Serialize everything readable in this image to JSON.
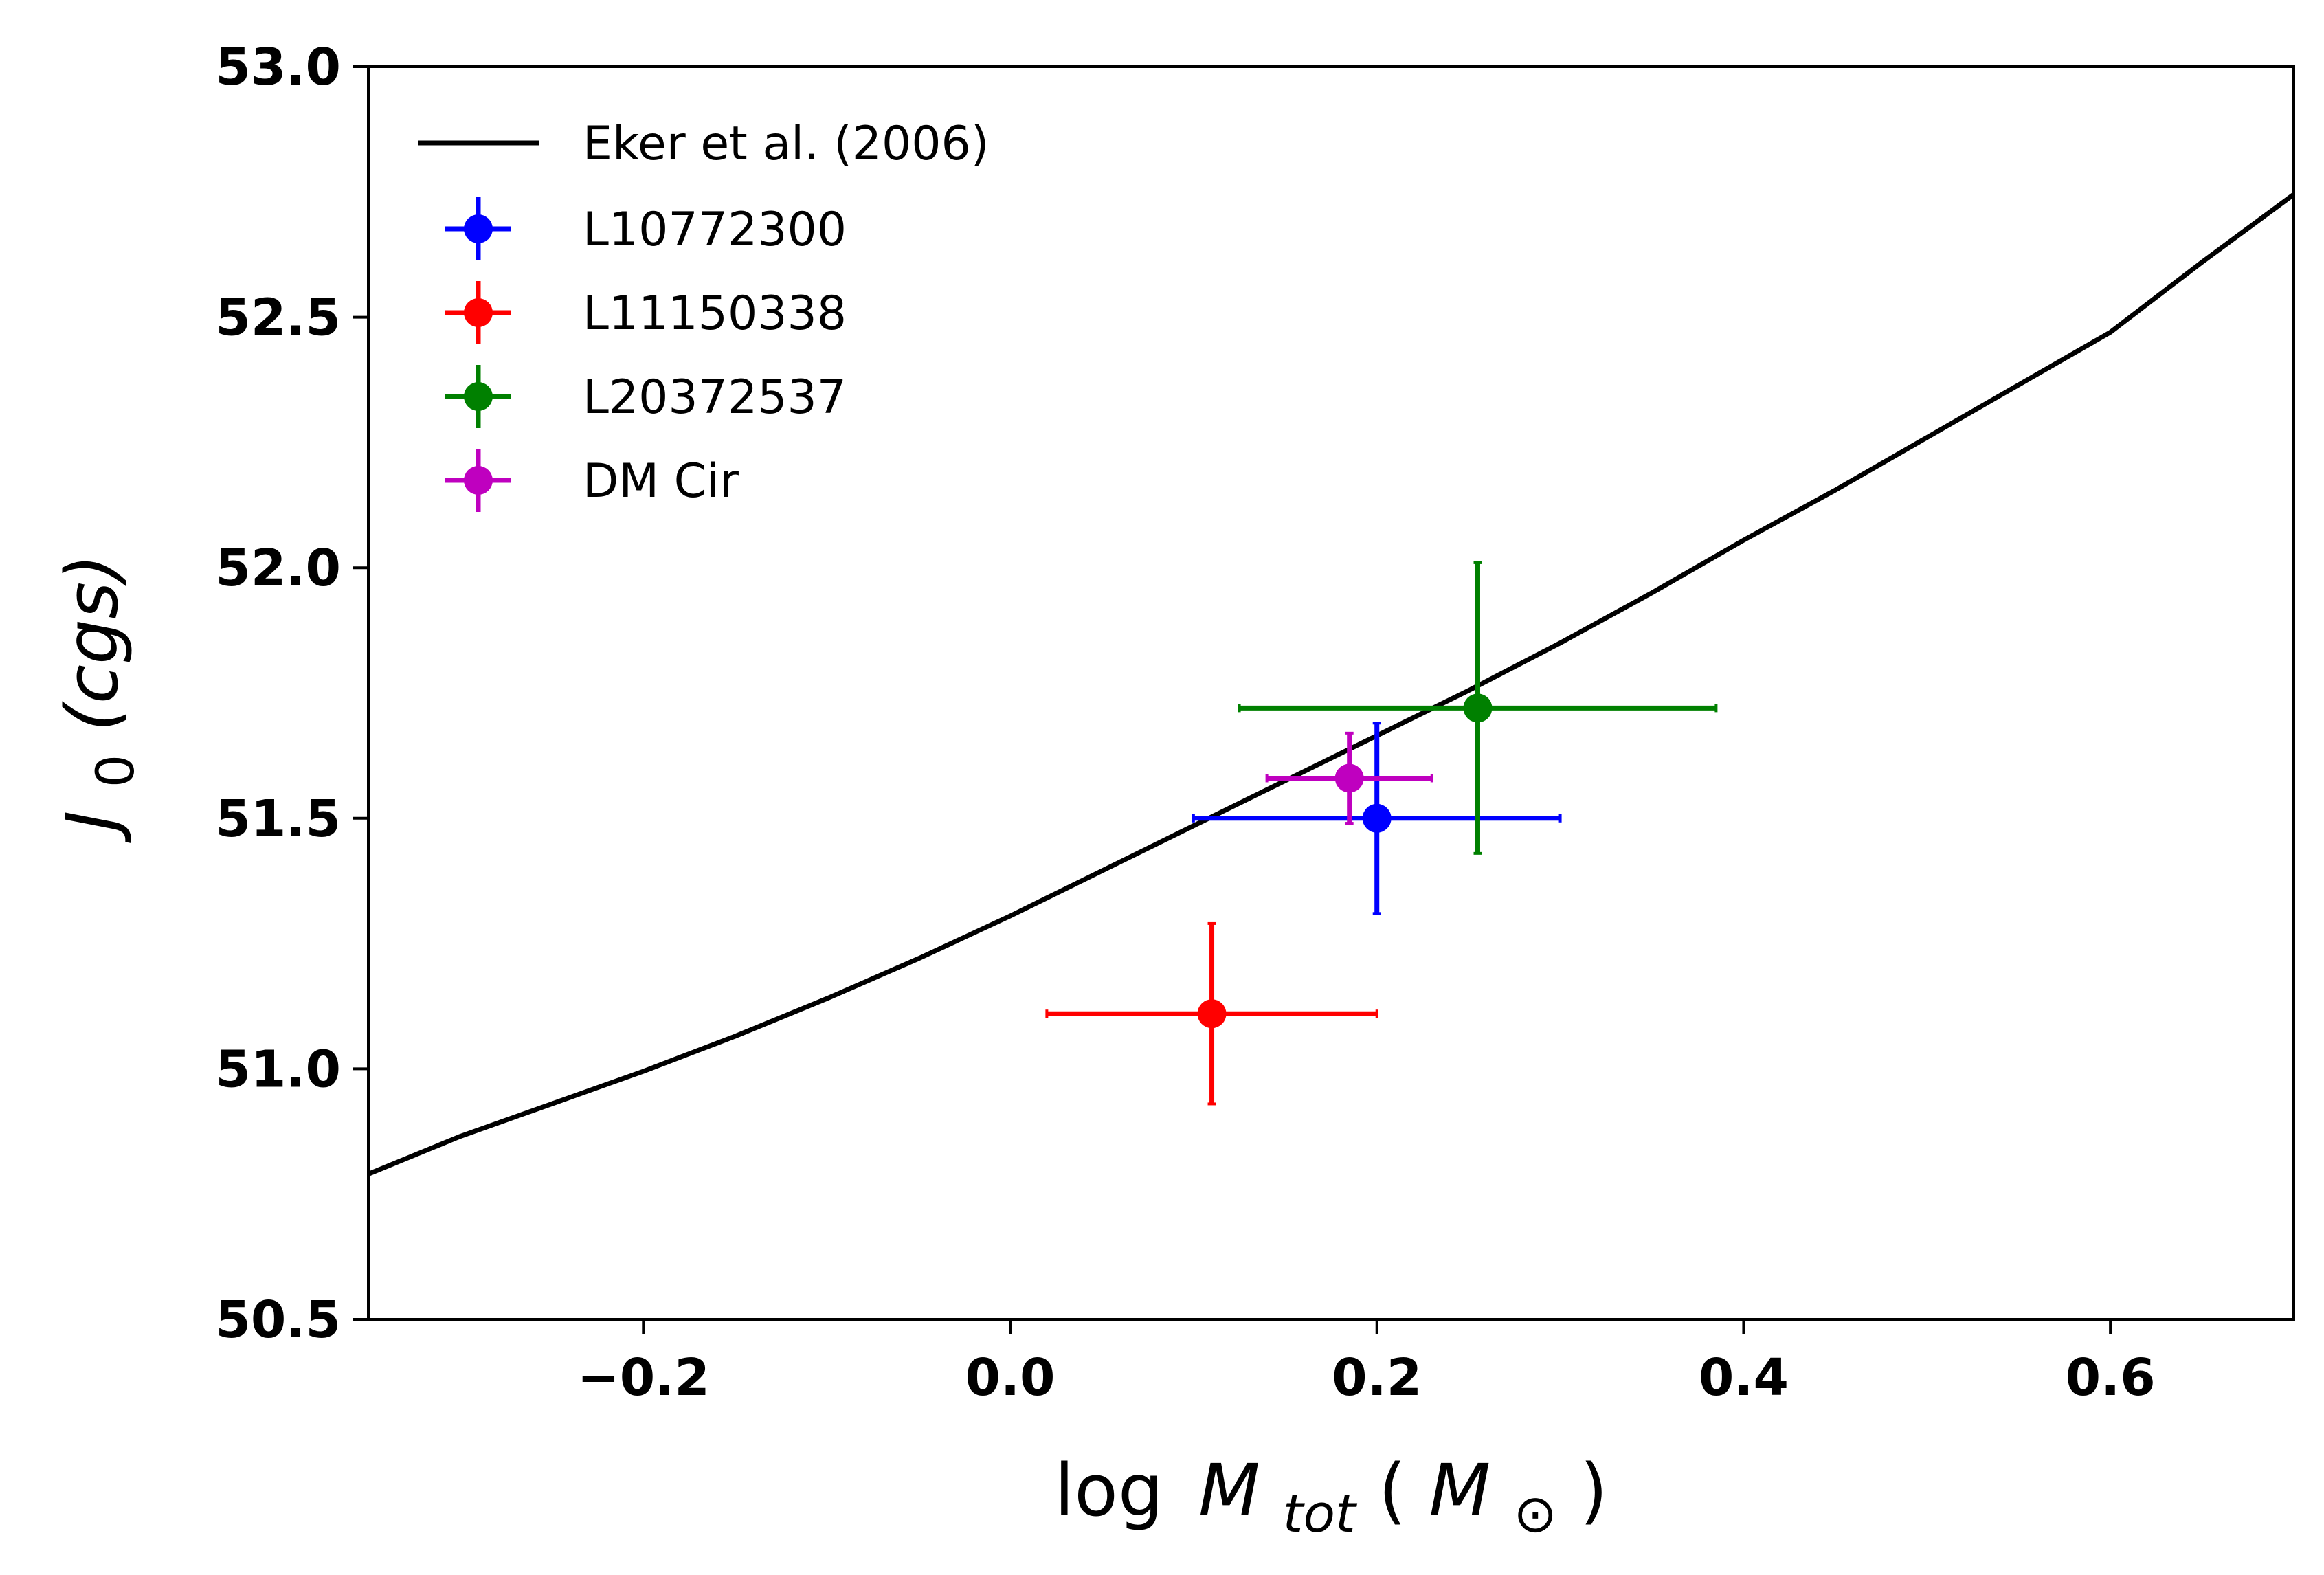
{
  "chart_data": {
    "type": "scatter",
    "title": "",
    "xlabel": {
      "prefix": "log",
      "symbol": "M",
      "subscript": "tot",
      "unit_open": "(",
      "unit_symbol": "M",
      "unit_subscript": "⊙",
      "unit_close": ")"
    },
    "ylabel": {
      "symbol": "J",
      "subscript": "0",
      "unit": "(cgs)"
    },
    "xlim": [
      -0.35,
      0.7
    ],
    "ylim": [
      50.5,
      53.0
    ],
    "x_ticks": [
      {
        "value": -0.2,
        "label": "−0.2"
      },
      {
        "value": 0.0,
        "label": "0.0"
      },
      {
        "value": 0.2,
        "label": "0.2"
      },
      {
        "value": 0.4,
        "label": "0.4"
      },
      {
        "value": 0.6,
        "label": "0.6"
      }
    ],
    "y_ticks": [
      {
        "value": 50.5,
        "label": "50.5"
      },
      {
        "value": 51.0,
        "label": "51.0"
      },
      {
        "value": 51.5,
        "label": "51.5"
      },
      {
        "value": 52.0,
        "label": "52.0"
      },
      {
        "value": 52.5,
        "label": "52.5"
      },
      {
        "value": 53.0,
        "label": "53.0"
      }
    ],
    "grid": false,
    "legend_position": "top-left",
    "line_series": {
      "name": "Eker et al. (2006)",
      "color": "#000000",
      "x": [
        -0.35,
        -0.3,
        -0.25,
        -0.2,
        -0.15,
        -0.1,
        -0.05,
        0.0,
        0.05,
        0.1,
        0.15,
        0.2,
        0.25,
        0.3,
        0.35,
        0.4,
        0.45,
        0.5,
        0.55,
        0.6,
        0.65,
        0.7
      ],
      "y": [
        50.79,
        50.865,
        50.93,
        50.995,
        51.065,
        51.14,
        51.22,
        51.305,
        51.395,
        51.485,
        51.575,
        51.665,
        51.755,
        51.85,
        51.95,
        52.055,
        52.155,
        52.26,
        52.365,
        52.47,
        52.61,
        52.745
      ]
    },
    "points": [
      {
        "name": "L10772300",
        "color": "#0000ff",
        "x": 0.2,
        "y": 51.5,
        "xerr": 0.1,
        "yerr": 0.19
      },
      {
        "name": "L11150338",
        "color": "#ff0000",
        "x": 0.11,
        "y": 51.11,
        "xerr": 0.09,
        "yerr": 0.18
      },
      {
        "name": "L20372537",
        "color": "#008000",
        "x": 0.255,
        "y": 51.72,
        "xerr": 0.13,
        "yerr": 0.29
      },
      {
        "name": "DM Cir",
        "color": "#bf00bf",
        "x": 0.185,
        "y": 51.58,
        "xerr": 0.045,
        "yerr": 0.09
      }
    ]
  }
}
